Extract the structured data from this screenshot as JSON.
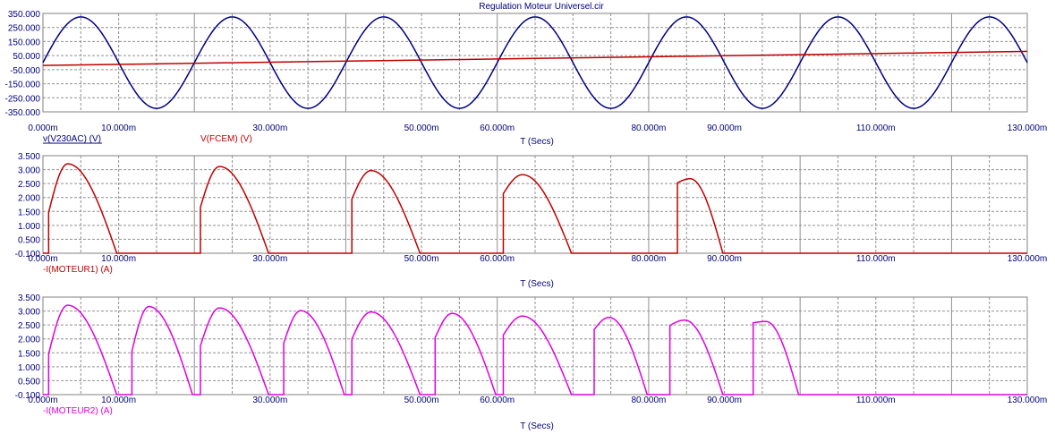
{
  "window_title": "Regulation Moteur Universel.cir",
  "chart_data": [
    {
      "type": "line",
      "title": "Regulation Moteur Universel.cir",
      "xlabel": "T (Secs)",
      "x_unit": "s",
      "xlim": [
        0,
        0.13
      ],
      "ylim": [
        -350,
        350
      ],
      "x_tick_labels": [
        "0.000m",
        "10.000m",
        "30.000m",
        "50.000m",
        "60.000m",
        "80.000m",
        "90.000m",
        "110.000m",
        "130.000m"
      ],
      "y_tick_labels": [
        "350.000",
        "250.000",
        "150.000",
        "50.000",
        "-50.000",
        "-150.000",
        "-250.000",
        "-350.000"
      ],
      "grid": true,
      "series": [
        {
          "name": "v(V230AC) (V)",
          "color": "#000080",
          "kind": "sine",
          "amplitude": 325,
          "frequency_hz": 50
        },
        {
          "name": "V(FCEM) (V)",
          "color": "#c00000",
          "kind": "ramp",
          "start": -20,
          "end": 80
        }
      ]
    },
    {
      "type": "line",
      "xlabel": "T (Secs)",
      "x_unit": "s",
      "xlim": [
        0,
        0.13
      ],
      "ylim": [
        -0.1,
        3.5
      ],
      "x_tick_labels": [
        "0.000m",
        "10.000m",
        "30.000m",
        "50.000m",
        "60.000m",
        "80.000m",
        "90.000m",
        "110.000m",
        "130.000m"
      ],
      "y_tick_labels": [
        "3.500",
        "3.000",
        "2.500",
        "2.000",
        "1.500",
        "1.000",
        "0.500",
        "-0.100"
      ],
      "grid": true,
      "series": [
        {
          "name": "-I(MOTEUR1) (A)",
          "color": "#c00000",
          "kind": "pulses",
          "pulses": [
            {
              "on": 0.00075,
              "off": 0.00975,
              "jump": 1.4,
              "peak": 3.2
            },
            {
              "on": 0.0208,
              "off": 0.0298,
              "jump": 1.6,
              "peak": 3.1
            },
            {
              "on": 0.0408,
              "off": 0.0498,
              "jump": 1.9,
              "peak": 2.95
            },
            {
              "on": 0.0608,
              "off": 0.0698,
              "jump": 2.1,
              "peak": 2.8
            },
            {
              "on": 0.0838,
              "off": 0.0898,
              "jump": 2.5,
              "peak": 2.65
            }
          ]
        }
      ]
    },
    {
      "type": "line",
      "xlabel": "T (Secs)",
      "x_unit": "s",
      "xlim": [
        0,
        0.13
      ],
      "ylim": [
        -0.1,
        3.5
      ],
      "x_tick_labels": [
        "0.000m",
        "10.000m",
        "30.000m",
        "50.000m",
        "60.000m",
        "80.000m",
        "90.000m",
        "110.000m",
        "130.000m"
      ],
      "y_tick_labels": [
        "3.500",
        "3.000",
        "2.500",
        "2.000",
        "1.500",
        "1.000",
        "0.500",
        "-0.100"
      ],
      "grid": true,
      "series": [
        {
          "name": "-I(MOTEUR2) (A)",
          "color": "#e000e0",
          "kind": "pulses",
          "pulses": [
            {
              "on": 0.00075,
              "off": 0.00975,
              "jump": 1.4,
              "peak": 3.2
            },
            {
              "on": 0.01175,
              "off": 0.01975,
              "jump": 1.5,
              "peak": 3.15
            },
            {
              "on": 0.0208,
              "off": 0.0298,
              "jump": 1.7,
              "peak": 3.1
            },
            {
              "on": 0.0318,
              "off": 0.0398,
              "jump": 1.8,
              "peak": 3.0
            },
            {
              "on": 0.0408,
              "off": 0.0498,
              "jump": 1.95,
              "peak": 2.95
            },
            {
              "on": 0.0518,
              "off": 0.0598,
              "jump": 2.0,
              "peak": 2.9
            },
            {
              "on": 0.0608,
              "off": 0.0698,
              "jump": 2.1,
              "peak": 2.8
            },
            {
              "on": 0.0728,
              "off": 0.0798,
              "jump": 2.3,
              "peak": 2.75
            },
            {
              "on": 0.0828,
              "off": 0.0898,
              "jump": 2.45,
              "peak": 2.65
            },
            {
              "on": 0.0938,
              "off": 0.0998,
              "jump": 2.55,
              "peak": 2.6
            }
          ]
        }
      ]
    }
  ]
}
